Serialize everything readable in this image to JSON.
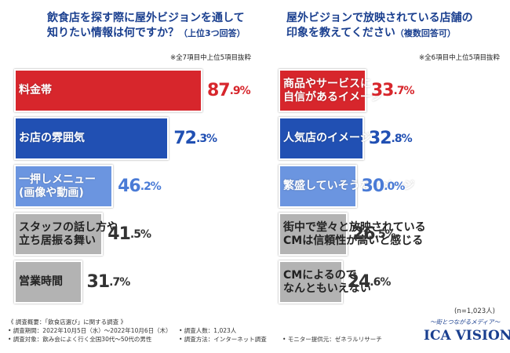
{
  "chart_data": [
    {
      "type": "bar",
      "title": "飲食店を探す際に屋外ビジョンを通して\n知りたい情報は何ですか？",
      "subtitle": "（上位3つ回答）",
      "note": "※全7項目中上位5項目抜粋",
      "categories": [
        "料金帯",
        "お店の雰囲気",
        "一押しメニュー\n(画像や動画)",
        "スタッフの話し方や\n立ち居振る舞い",
        "営業時間"
      ],
      "values": [
        87.9,
        72.3,
        46.2,
        41.5,
        31.7
      ],
      "value_labels": [
        "87.9%",
        "72.3%",
        "46.2%",
        "41.5%",
        "31.7%"
      ],
      "colors": [
        "#d7262c",
        "#2150b3",
        "#6b95e0",
        "#b3b3b3",
        "#b3b3b3"
      ]
    },
    {
      "type": "bar",
      "title": "屋外ビジョンで放映されている店舗の\n印象を教えてください",
      "subtitle": "（複数回答可）",
      "note": "※全6項目中上位5項目抜粋",
      "categories": [
        "商品やサービスに\n自信があるイメージ",
        "人気店のイメージ",
        "繁盛していそうなイメージ",
        "街中で堂々と放映されている\nCMは信頼性が高いと感じる",
        "CMによるので\nなんともいえない"
      ],
      "values": [
        33.7,
        32.8,
        30.0,
        26.5,
        24.6
      ],
      "value_labels": [
        "33.7%",
        "32.8%",
        "30.0%",
        "26.5%",
        "24.6%"
      ],
      "colors": [
        "#d7262c",
        "#2150b3",
        "#6b95e0",
        "#b3b3b3",
        "#b3b3b3"
      ]
    }
  ],
  "sample": "(n=1,023人)",
  "survey": {
    "heading": "《 調査概要：「飲食店選び」に関する調査 》",
    "items": [
      "• 調査期間：2022年10月5日（水）～2022年10月6日（木）",
      "• 調査人数：1,023人",
      "• 調査対象：飲み会によく行く全国30代～50代の男性",
      "• 調査方法：インターネット調査",
      "• モニター提供元：ゼネラルリサーチ"
    ]
  },
  "logo": {
    "tagline": "〜街とつながるメディア〜",
    "name": "ICA VISION"
  }
}
